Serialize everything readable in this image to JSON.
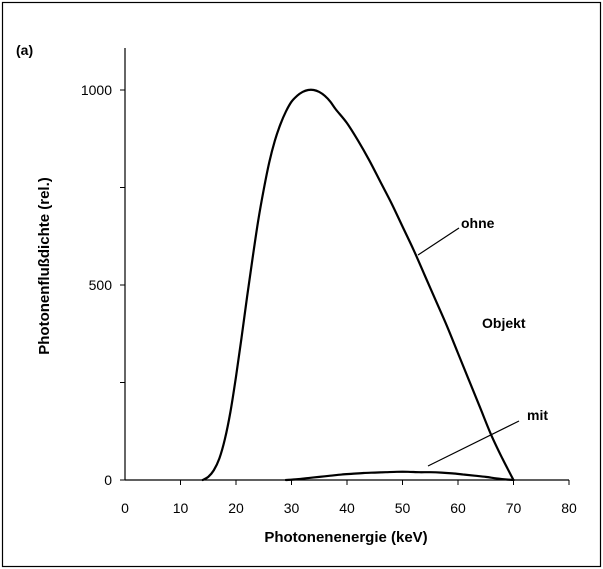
{
  "chart_data": {
    "type": "line",
    "panel_label": "(a)",
    "xlabel": "Photonenenergie (keV)",
    "ylabel": "Photonenflußdichte (rel.)",
    "xlim": [
      0,
      80
    ],
    "ylim": [
      0,
      1000
    ],
    "xticks": [
      "0",
      "10",
      "20",
      "30",
      "40",
      "50",
      "60",
      "70",
      "80"
    ],
    "yticks": [
      "0",
      "500",
      "1000"
    ],
    "grid": false,
    "annotations": [
      "ohne",
      "Objekt",
      "mit"
    ],
    "series": [
      {
        "x": [
          14,
          15,
          16,
          17,
          18,
          19,
          20,
          21,
          22,
          23,
          24,
          25,
          26,
          27,
          28,
          29,
          30,
          31,
          32,
          33,
          34,
          35,
          36,
          37,
          38,
          40,
          42,
          44,
          46,
          48,
          50,
          52,
          54,
          56,
          58,
          60,
          62,
          64,
          66,
          68,
          70
        ],
        "y": [
          0,
          8,
          25,
          55,
          105,
          175,
          265,
          365,
          470,
          570,
          665,
          745,
          815,
          870,
          912,
          945,
          970,
          985,
          995,
          1000,
          1000,
          995,
          985,
          970,
          950,
          915,
          870,
          820,
          765,
          710,
          650,
          590,
          525,
          460,
          395,
          325,
          255,
          185,
          115,
          55,
          0
        ]
      },
      {
        "x": [
          29,
          31,
          33,
          35,
          37,
          39,
          41,
          43,
          45,
          47,
          49,
          51,
          53,
          55,
          57,
          59,
          61,
          63,
          65,
          67,
          69,
          70
        ],
        "y": [
          0,
          2,
          5,
          8,
          11,
          14,
          16,
          18,
          19,
          20,
          21,
          21,
          20,
          20,
          19,
          17,
          14,
          11,
          8,
          4,
          1,
          0
        ]
      }
    ]
  }
}
